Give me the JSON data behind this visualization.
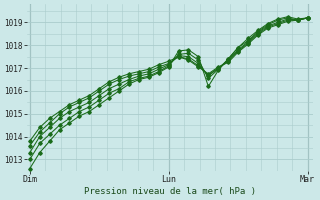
{
  "bg_color": "#cce8e8",
  "grid_color": "#aacccc",
  "line_color": "#1a6b1a",
  "ylim": [
    1012.5,
    1019.8
  ],
  "yticks": [
    1013,
    1014,
    1015,
    1016,
    1017,
    1018,
    1019
  ],
  "xtick_labels": [
    "Dim",
    "Lun",
    "Mar"
  ],
  "xtick_positions": [
    0.0,
    0.475,
    0.95
  ],
  "xlabel": "Pression niveau de la mer( hPa )",
  "series": [
    [
      1012.6,
      1013.3,
      1013.8,
      1014.3,
      1014.6,
      1014.9,
      1015.1,
      1015.4,
      1015.7,
      1016.0,
      1016.3,
      1016.5,
      1016.6,
      1016.8,
      1017.05,
      1017.75,
      1017.8,
      1017.5,
      1016.2,
      1016.9,
      1017.4,
      1017.9,
      1018.3,
      1018.65,
      1018.95,
      1019.15,
      1019.25,
      1019.15,
      1019.2
    ],
    [
      1013.0,
      1013.7,
      1014.1,
      1014.5,
      1014.8,
      1015.1,
      1015.3,
      1015.6,
      1015.9,
      1016.1,
      1016.4,
      1016.55,
      1016.65,
      1016.85,
      1017.1,
      1017.6,
      1017.65,
      1017.35,
      1016.55,
      1016.95,
      1017.4,
      1017.9,
      1018.2,
      1018.6,
      1018.9,
      1019.1,
      1019.2,
      1019.1,
      1019.2
    ],
    [
      1013.3,
      1014.0,
      1014.4,
      1014.8,
      1015.1,
      1015.3,
      1015.5,
      1015.8,
      1016.1,
      1016.3,
      1016.5,
      1016.65,
      1016.75,
      1016.95,
      1017.15,
      1017.55,
      1017.5,
      1017.2,
      1016.65,
      1017.0,
      1017.35,
      1017.8,
      1018.15,
      1018.55,
      1018.85,
      1019.0,
      1019.15,
      1019.1,
      1019.2
    ],
    [
      1013.6,
      1014.2,
      1014.6,
      1015.0,
      1015.3,
      1015.5,
      1015.7,
      1016.0,
      1016.3,
      1016.5,
      1016.65,
      1016.75,
      1016.85,
      1017.05,
      1017.2,
      1017.5,
      1017.4,
      1017.1,
      1016.7,
      1017.0,
      1017.3,
      1017.75,
      1018.1,
      1018.5,
      1018.8,
      1018.95,
      1019.1,
      1019.1,
      1019.2
    ],
    [
      1013.8,
      1014.4,
      1014.8,
      1015.1,
      1015.4,
      1015.6,
      1015.8,
      1016.1,
      1016.4,
      1016.6,
      1016.75,
      1016.85,
      1016.95,
      1017.15,
      1017.3,
      1017.5,
      1017.35,
      1017.05,
      1016.75,
      1017.05,
      1017.25,
      1017.7,
      1018.05,
      1018.45,
      1018.75,
      1018.9,
      1019.05,
      1019.1,
      1019.2
    ]
  ]
}
